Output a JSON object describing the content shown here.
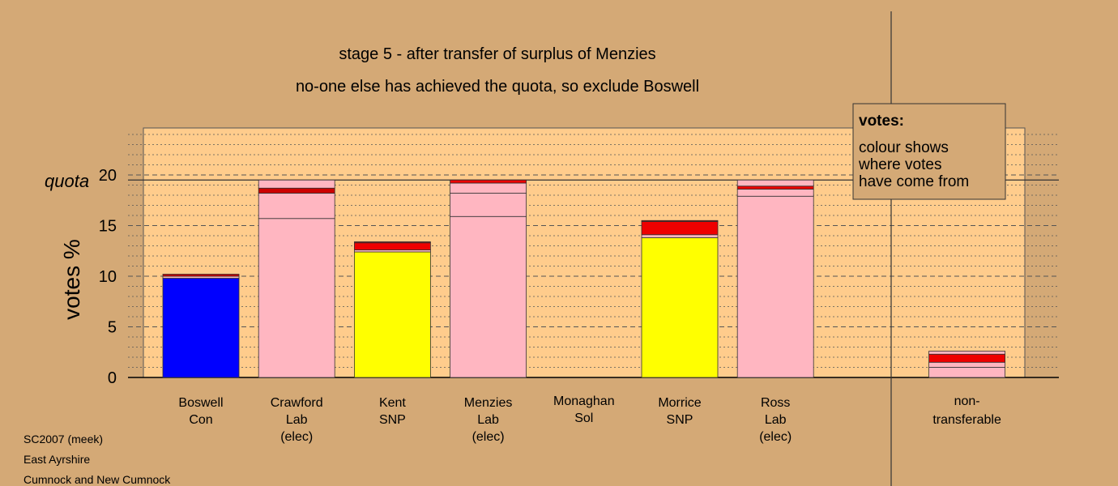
{
  "chart_data": {
    "type": "bar",
    "stacked": true,
    "title": "stage 5 - after transfer of surplus of Menzies",
    "subtitle": "no-one else has achieved the quota, so exclude Boswell",
    "ylabel": "votes %",
    "ylim": [
      0,
      20
    ],
    "yticks": [
      "0",
      "5",
      "10",
      "15",
      "20"
    ],
    "quota_label": "quota",
    "quota_value": 19.5,
    "grid": true,
    "legend": {
      "title": "votes:",
      "lines": [
        "colour shows",
        "where votes",
        "have come from"
      ],
      "placement": "top-right"
    },
    "categories": [
      {
        "name": "Boswell",
        "party": "Con",
        "status": ""
      },
      {
        "name": "Crawford",
        "party": "Lab",
        "status": "(elec)"
      },
      {
        "name": "Kent",
        "party": "SNP",
        "status": ""
      },
      {
        "name": "Menzies",
        "party": "Lab",
        "status": "(elec)"
      },
      {
        "name": "Monaghan",
        "party": "Sol",
        "status": ""
      },
      {
        "name": "Morrice",
        "party": "SNP",
        "status": ""
      },
      {
        "name": "Ross",
        "party": "Lab",
        "status": "(elec)"
      },
      {
        "name": "non-",
        "party": "transferable",
        "status": ""
      }
    ],
    "segments": [
      [
        {
          "value": 9.8,
          "color": "#0000ff"
        },
        {
          "value": 0.2,
          "color": "#ffb6c1"
        },
        {
          "value": 0.2,
          "color": "#cc0000"
        }
      ],
      [
        {
          "value": 15.7,
          "color": "#ffb6c1"
        },
        {
          "value": 2.5,
          "color": "#ffb6c1"
        },
        {
          "value": 0.5,
          "color": "#cc0000"
        },
        {
          "value": 0.8,
          "color": "#ffb6c1"
        }
      ],
      [
        {
          "value": 12.4,
          "color": "#ffff00"
        },
        {
          "value": 0.2,
          "color": "#ffb6c1"
        },
        {
          "value": 0.7,
          "color": "#ee0000"
        },
        {
          "value": 0.1,
          "color": "#990000"
        }
      ],
      [
        {
          "value": 15.9,
          "color": "#ffb6c1"
        },
        {
          "value": 2.3,
          "color": "#ffb6c1"
        },
        {
          "value": 1.0,
          "color": "#ffb6c1"
        },
        {
          "value": 0.3,
          "color": "#ee0000"
        }
      ],
      [],
      [
        {
          "value": 13.8,
          "color": "#ffff00"
        },
        {
          "value": 0.3,
          "color": "#ffb6c1"
        },
        {
          "value": 1.3,
          "color": "#ee0000"
        },
        {
          "value": 0.1,
          "color": "#990000"
        }
      ],
      [
        {
          "value": 17.9,
          "color": "#ffb6c1"
        },
        {
          "value": 0.7,
          "color": "#ffb6c1"
        },
        {
          "value": 0.3,
          "color": "#ee0000"
        },
        {
          "value": 0.6,
          "color": "#ffb6c1"
        }
      ],
      [
        {
          "value": 1.0,
          "color": "#ffb6c1"
        },
        {
          "value": 0.5,
          "color": "#ffb6c1"
        },
        {
          "value": 0.8,
          "color": "#ee0000"
        },
        {
          "value": 0.3,
          "color": "#ffb6c1"
        }
      ]
    ]
  },
  "footer": {
    "line1": "SC2007 (meek)",
    "line2": "East Ayrshire",
    "line3": "Cumnock and New Cumnock"
  },
  "colors": {
    "background": "#d4a976",
    "plot_background": "#ffcc8c"
  }
}
